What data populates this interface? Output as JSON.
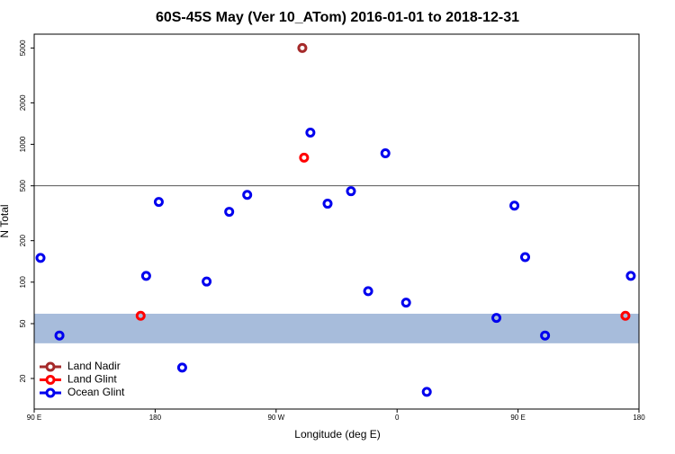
{
  "chart_data": {
    "type": "scatter",
    "title": "60S-45S May (Ver 10_ATom)   2016-01-01 to 2018-12-31",
    "x_label": "Longitude (deg E)",
    "y_label": "N Total",
    "xlim": [
      90,
      540
    ],
    "ylim": [
      12,
      6300
    ],
    "log_y": true,
    "xticks": [
      {
        "value": 90,
        "label": "90 E"
      },
      180,
      {
        "value": 270,
        "label": "90 W"
      },
      {
        "value": 360,
        "label": "0"
      },
      {
        "value": 450,
        "label": "90 E"
      },
      {
        "value": 540,
        "label": "180"
      }
    ],
    "yticks": [
      20,
      50,
      100,
      200,
      500,
      1000,
      2000,
      5000
    ],
    "hline": 500,
    "band": [
      36,
      59
    ],
    "band_color": "#a7bcdb",
    "legend": "bottom-left",
    "series": [
      {
        "name": "Land Nadir",
        "color": "#a52a2a",
        "x": [
          289.5
        ],
        "values": [
          5000
        ]
      },
      {
        "name": "Land Glint",
        "color": "#ff0000",
        "x": [
          290.8,
          169.2,
          529.9
        ],
        "values": [
          800,
          57,
          57
        ]
      },
      {
        "name": "Ocean Glint",
        "color": "#0000ee",
        "x": [
          94.7,
          108.8,
          173.3,
          182.7,
          200.1,
          218.3,
          235.1,
          248.5,
          295.5,
          308.3,
          325.7,
          338.5,
          351.3,
          366.7,
          382.1,
          433.9,
          447.3,
          455.3,
          470.1,
          533.9
        ],
        "values": [
          150,
          41,
          111,
          382,
          24,
          101,
          324,
          430,
          1216,
          371,
          457,
          86,
          861,
          71,
          16,
          55,
          359,
          152,
          41,
          111
        ]
      }
    ]
  }
}
